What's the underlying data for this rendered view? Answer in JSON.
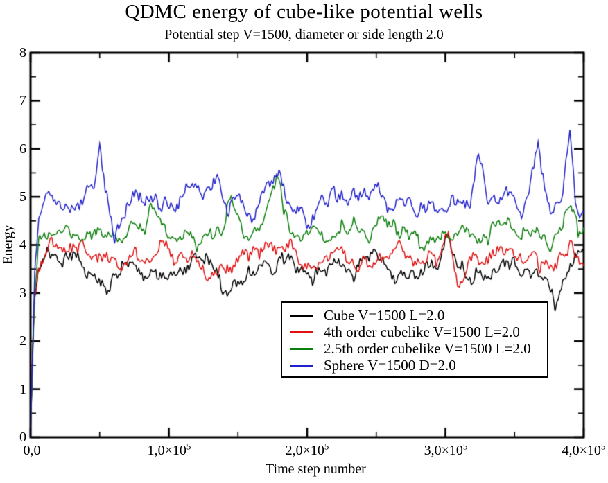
{
  "chart_data": {
    "type": "line",
    "title": "QDMC energy of cube-like potential wells",
    "subtitle": "Potential step V=1500, diameter or side length 2.0",
    "xlabel": "Time step number",
    "ylabel": "Energy",
    "xlim": [
      0,
      400000
    ],
    "ylim": [
      0,
      8
    ],
    "grid": false,
    "frame_color": "#000000",
    "x_major_step": 100000,
    "x_minor_step": 50000,
    "y_major_step": 1,
    "y_minor_step": 0.5,
    "x_tick_labels": [
      {
        "base": "0,0",
        "exp": ""
      },
      {
        "base": "1,0×10",
        "exp": "5"
      },
      {
        "base": "2,0×10",
        "exp": "5"
      },
      {
        "base": "3,0×10",
        "exp": "5"
      },
      {
        "base": "4,0×10",
        "exp": "5"
      }
    ],
    "y_tick_labels": [
      "0",
      "1",
      "2",
      "3",
      "4",
      "5",
      "6",
      "7",
      "8"
    ],
    "legend_position": "inside-bottom-center",
    "series": [
      {
        "name": "Cube V=1500 L=2.0",
        "color": "#000000",
        "seed": 3,
        "noise": [
          0.1,
          0.17,
          0.1
        ],
        "points": [
          [
            0,
            0
          ],
          [
            1500,
            1.7
          ],
          [
            3000,
            2.9
          ],
          [
            6000,
            3.4
          ],
          [
            10000,
            3.6
          ],
          [
            15000,
            3.75
          ],
          [
            25000,
            3.6
          ],
          [
            35000,
            3.65
          ],
          [
            45000,
            3.5
          ],
          [
            55000,
            3.1
          ],
          [
            65000,
            3.45
          ],
          [
            75000,
            3.5
          ],
          [
            85000,
            3.35
          ],
          [
            95000,
            3.55
          ],
          [
            105000,
            3.4
          ],
          [
            115000,
            3.6
          ],
          [
            125000,
            3.7
          ],
          [
            135000,
            3.3
          ],
          [
            145000,
            3.0
          ],
          [
            155000,
            3.3
          ],
          [
            165000,
            3.6
          ],
          [
            175000,
            3.4
          ],
          [
            185000,
            3.7
          ],
          [
            195000,
            3.55
          ],
          [
            205000,
            3.35
          ],
          [
            215000,
            3.6
          ],
          [
            225000,
            3.5
          ],
          [
            235000,
            3.3
          ],
          [
            245000,
            3.7
          ],
          [
            255000,
            3.6
          ],
          [
            265000,
            3.4
          ],
          [
            275000,
            3.5
          ],
          [
            285000,
            3.3
          ],
          [
            295000,
            3.6
          ],
          [
            302000,
            4.15
          ],
          [
            310000,
            3.6
          ],
          [
            320000,
            3.4
          ],
          [
            330000,
            3.3
          ],
          [
            340000,
            3.55
          ],
          [
            350000,
            3.4
          ],
          [
            360000,
            3.5
          ],
          [
            370000,
            3.3
          ],
          [
            379000,
            2.85
          ],
          [
            390000,
            3.6
          ],
          [
            400000,
            3.7
          ]
        ]
      },
      {
        "name": "4th order cubelike V=1500 L=2.0",
        "color": "#e01010",
        "seed": 5,
        "noise": [
          0.1,
          0.16,
          0.1
        ],
        "points": [
          [
            0,
            0
          ],
          [
            1500,
            1.9
          ],
          [
            3000,
            3.2
          ],
          [
            6000,
            3.6
          ],
          [
            10000,
            3.75
          ],
          [
            15000,
            4.0
          ],
          [
            25000,
            3.9
          ],
          [
            35000,
            4.05
          ],
          [
            45000,
            3.7
          ],
          [
            55000,
            3.9
          ],
          [
            65000,
            3.6
          ],
          [
            75000,
            3.8
          ],
          [
            85000,
            3.6
          ],
          [
            95000,
            3.9
          ],
          [
            105000,
            3.7
          ],
          [
            115000,
            3.85
          ],
          [
            125000,
            3.6
          ],
          [
            135000,
            3.5
          ],
          [
            145000,
            3.4
          ],
          [
            155000,
            3.7
          ],
          [
            165000,
            3.9
          ],
          [
            175000,
            3.8
          ],
          [
            185000,
            3.95
          ],
          [
            195000,
            3.7
          ],
          [
            205000,
            3.6
          ],
          [
            215000,
            3.8
          ],
          [
            225000,
            3.9
          ],
          [
            235000,
            3.6
          ],
          [
            245000,
            3.8
          ],
          [
            255000,
            3.7
          ],
          [
            265000,
            3.9
          ],
          [
            275000,
            3.6
          ],
          [
            285000,
            3.8
          ],
          [
            295000,
            3.7
          ],
          [
            302000,
            4.1
          ],
          [
            310000,
            3.15
          ],
          [
            320000,
            3.8
          ],
          [
            330000,
            3.7
          ],
          [
            340000,
            3.9
          ],
          [
            350000,
            3.6
          ],
          [
            360000,
            3.8
          ],
          [
            370000,
            3.7
          ],
          [
            380000,
            3.6
          ],
          [
            390000,
            4.0
          ],
          [
            400000,
            3.6
          ]
        ]
      },
      {
        "name": "2.5th order cubelike V=1500 L=2.0",
        "color": "#0a7d0a",
        "seed": 7,
        "noise": [
          0.09,
          0.15,
          0.1
        ],
        "points": [
          [
            0,
            0
          ],
          [
            1500,
            1.6
          ],
          [
            3000,
            3.0
          ],
          [
            6000,
            4.0
          ],
          [
            12000,
            4.25
          ],
          [
            20000,
            4.45
          ],
          [
            30000,
            4.3
          ],
          [
            40000,
            4.2
          ],
          [
            50000,
            4.4
          ],
          [
            60000,
            4.1
          ],
          [
            70000,
            4.3
          ],
          [
            80000,
            4.2
          ],
          [
            87000,
            4.6
          ],
          [
            95000,
            4.3
          ],
          [
            100000,
            4.1
          ],
          [
            110000,
            4.3
          ],
          [
            120000,
            4.0
          ],
          [
            130000,
            4.4
          ],
          [
            138000,
            4.15
          ],
          [
            145000,
            4.8
          ],
          [
            152000,
            4.3
          ],
          [
            160000,
            4.2
          ],
          [
            168000,
            4.45
          ],
          [
            178000,
            5.5
          ],
          [
            183000,
            4.6
          ],
          [
            190000,
            4.3
          ],
          [
            197000,
            4.15
          ],
          [
            205000,
            4.4
          ],
          [
            215000,
            4.1
          ],
          [
            225000,
            4.3
          ],
          [
            235000,
            4.5
          ],
          [
            245000,
            4.2
          ],
          [
            255000,
            4.6
          ],
          [
            265000,
            4.2
          ],
          [
            275000,
            4.4
          ],
          [
            285000,
            4.0
          ],
          [
            295000,
            4.3
          ],
          [
            305000,
            4.2
          ],
          [
            315000,
            4.4
          ],
          [
            325000,
            4.1
          ],
          [
            335000,
            4.3
          ],
          [
            345000,
            4.5
          ],
          [
            355000,
            4.1
          ],
          [
            365000,
            4.3
          ],
          [
            375000,
            4.0
          ],
          [
            385000,
            4.4
          ],
          [
            391000,
            5.0
          ],
          [
            396000,
            4.2
          ],
          [
            400000,
            4.3
          ]
        ]
      },
      {
        "name": "Sphere V=1500 D=2.0",
        "color": "#2121cc",
        "seed": 11,
        "noise": [
          0.1,
          0.17,
          0.12
        ],
        "points": [
          [
            0,
            0
          ],
          [
            1500,
            1.8
          ],
          [
            3000,
            3.4
          ],
          [
            6000,
            4.55
          ],
          [
            12000,
            4.9
          ],
          [
            20000,
            5.0
          ],
          [
            30000,
            4.75
          ],
          [
            40000,
            5.05
          ],
          [
            46000,
            5.1
          ],
          [
            50000,
            6.05
          ],
          [
            54000,
            5.2
          ],
          [
            61000,
            4.25
          ],
          [
            70000,
            5.0
          ],
          [
            80000,
            4.85
          ],
          [
            90000,
            5.1
          ],
          [
            100000,
            4.8
          ],
          [
            110000,
            5.0
          ],
          [
            120000,
            5.5
          ],
          [
            128000,
            4.9
          ],
          [
            135000,
            5.35
          ],
          [
            143000,
            4.8
          ],
          [
            150000,
            5.1
          ],
          [
            160000,
            4.7
          ],
          [
            170000,
            5.2
          ],
          [
            178000,
            5.6
          ],
          [
            185000,
            5.0
          ],
          [
            195000,
            4.8
          ],
          [
            200000,
            4.4
          ],
          [
            210000,
            4.9
          ],
          [
            220000,
            5.2
          ],
          [
            230000,
            4.8
          ],
          [
            240000,
            5.0
          ],
          [
            250000,
            5.3
          ],
          [
            260000,
            4.8
          ],
          [
            270000,
            5.1
          ],
          [
            280000,
            4.7
          ],
          [
            290000,
            5.0
          ],
          [
            300000,
            4.8
          ],
          [
            310000,
            5.0
          ],
          [
            318000,
            4.7
          ],
          [
            324000,
            5.9
          ],
          [
            330000,
            5.0
          ],
          [
            335000,
            4.8
          ],
          [
            345000,
            5.2
          ],
          [
            355000,
            4.7
          ],
          [
            360000,
            5.0
          ],
          [
            367000,
            6.2
          ],
          [
            372000,
            5.0
          ],
          [
            378000,
            4.8
          ],
          [
            382000,
            5.0
          ],
          [
            386000,
            5.3
          ],
          [
            390000,
            6.3
          ],
          [
            394000,
            4.9
          ],
          [
            397000,
            4.6
          ],
          [
            400000,
            4.9
          ]
        ]
      }
    ]
  }
}
